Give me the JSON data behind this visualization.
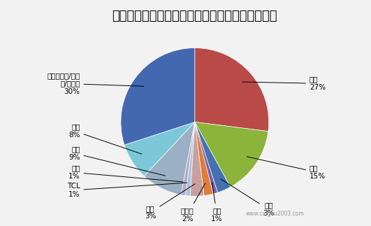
{
  "title": "中央国家机关政府采购电子卖场民用空调上架情况",
  "labels": [
    "美的",
    "格力",
    "大金",
    "三星",
    "奥克斯",
    "志高",
    "TCL",
    "创维",
    "松下",
    "海信",
    "海尔（海尔/卡萨\n帝/统帅）"
  ],
  "values": [
    27,
    15,
    3,
    1,
    2,
    3,
    1,
    1,
    9,
    8,
    30
  ],
  "colors": [
    "#b94a48",
    "#8ab43a",
    "#4472b0",
    "#7b5ea7",
    "#e07c3a",
    "#c8a0a0",
    "#aac4d8",
    "#b8a8cc",
    "#9ab0c4",
    "#7dc8d8",
    "#4468b0"
  ],
  "label_pcts": [
    "27%",
    "15%",
    "3%",
    "1%",
    "2%",
    "3%",
    "1%",
    "1%",
    "9%",
    "8%",
    "30%"
  ],
  "watermark": "www.caigou2003.com",
  "background_color": "#f2f2f2",
  "title_fontsize": 13
}
